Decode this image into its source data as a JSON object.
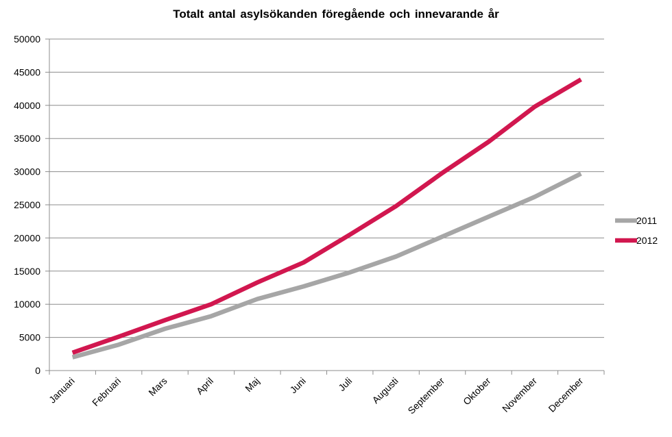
{
  "chart_data": {
    "type": "line",
    "title": "Totalt antal asylsökanden föregående och innevarande år",
    "xlabel": "",
    "ylabel": "",
    "categories": [
      "Januari",
      "Februari",
      "Mars",
      "April",
      "Maj",
      "Juni",
      "Juli",
      "Augusti",
      "September",
      "Oktober",
      "November",
      "December"
    ],
    "ylim": [
      0,
      50000
    ],
    "yticks": [
      "0",
      "5000",
      "10000",
      "15000",
      "20000",
      "25000",
      "30000",
      "35000",
      "40000",
      "45000",
      "50000"
    ],
    "grid": true,
    "legend_position": "right",
    "series": [
      {
        "name": "2011",
        "color": "#a6a6a6",
        "values": [
          2000,
          3900,
          6300,
          8200,
          10800,
          12700,
          14800,
          17200,
          20200,
          23200,
          26200,
          29700
        ]
      },
      {
        "name": "2012",
        "color": "#d1174f",
        "values": [
          2700,
          5100,
          7600,
          10000,
          13300,
          16300,
          20500,
          24800,
          29800,
          34500,
          39800,
          43900
        ]
      }
    ]
  }
}
